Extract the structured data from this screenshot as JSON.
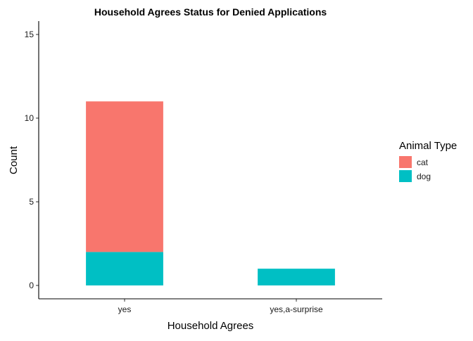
{
  "chart_data": {
    "type": "bar",
    "stacked": true,
    "title": "Household Agrees Status for Denied Applications",
    "xlabel": "Household Agrees",
    "ylabel": "Count",
    "categories": [
      "yes",
      "yes,a-surprise"
    ],
    "series": [
      {
        "name": "cat",
        "color": "#F8766D",
        "values": [
          9,
          0
        ]
      },
      {
        "name": "dog",
        "color": "#00BFC4",
        "values": [
          2,
          1
        ]
      }
    ],
    "ylim": [
      -0.8,
      15.8
    ],
    "yticks": [
      0,
      5,
      10,
      15
    ],
    "grid": false,
    "legend": {
      "title": "Animal Type",
      "position": "right"
    }
  }
}
